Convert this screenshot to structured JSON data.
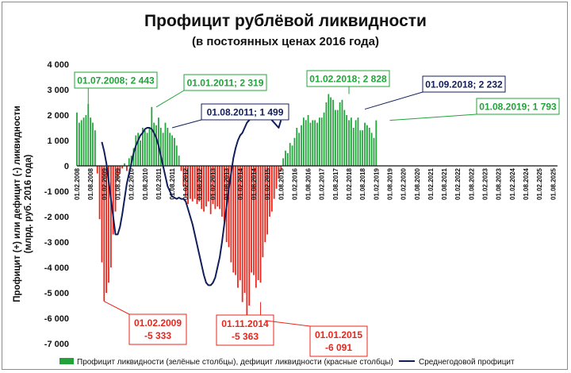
{
  "chart_data": {
    "type": "bar",
    "title": "Профицит рублёвой ликвидности",
    "subtitle": "(в постоянных ценах 2016 года)",
    "ylabel_line1": "Профицит (+) или дефицит (-) ликвидности",
    "ylabel_line2": "(млрд. руб. 2016 года)",
    "ylim": [
      -7000,
      4000
    ],
    "ytick_values": [
      4000,
      3000,
      2000,
      1000,
      0,
      -1000,
      -2000,
      -3000,
      -4000,
      -5000,
      -6000,
      -7000
    ],
    "ytick_labels": [
      "4 000",
      "3 000",
      "2 000",
      "1 000",
      "0",
      "-1 000",
      "-2 000",
      "-3 000",
      "-4 000",
      "-5 000",
      "-6 000",
      "-7 000"
    ],
    "x_start": "2008-02",
    "x_end": "2025-10",
    "xtick_labels": [
      "01.02.2008",
      "01.08.2008",
      "01.02.2009",
      "01.08.2009",
      "01.02.2010",
      "01.08.2010",
      "01.02.2011",
      "01.08.2011",
      "01.02.2012",
      "01.08.2012",
      "01.02.2013",
      "01.08.2013",
      "01.02.2014",
      "01.08.2014",
      "01.02.2015",
      "01.08.2015",
      "01.02.2016",
      "01.08.2016",
      "01.02.2017",
      "01.08.2017",
      "01.02.2018",
      "01.08.2018",
      "01.02.2019",
      "01.08.2019",
      "01.02.2020",
      "01.08.2020",
      "01.02.2021",
      "01.08.2021",
      "01.02.2022",
      "01.08.2022",
      "01.02.2023",
      "01.08.2023",
      "01.02.2024",
      "01.08.2024",
      "01.02.2025",
      "01.08.2025"
    ],
    "bar_start": "2008-02",
    "bars": [
      2100,
      1700,
      1800,
      1900,
      2000,
      2443,
      1900,
      1700,
      1400,
      -300,
      -2100,
      -3800,
      -5333,
      -5000,
      -4600,
      -4000,
      -2700,
      -1800,
      -600,
      -300,
      -100,
      100,
      -200,
      300,
      400,
      700,
      1200,
      1300,
      1000,
      1500,
      1400,
      1300,
      1500,
      2319,
      1700,
      1600,
      1900,
      1500,
      1300,
      1700,
      1500,
      1300,
      1200,
      1100,
      800,
      400,
      -200,
      -800,
      -1200,
      -1500,
      -1300,
      -1400,
      -1300,
      -1500,
      -1400,
      -1700,
      -1800,
      -1600,
      -1400,
      -1900,
      -1500,
      -1700,
      -1600,
      -1700,
      -2000,
      -2200,
      -3000,
      -3200,
      -3800,
      -4200,
      -4300,
      -4800,
      -4500,
      -5363,
      -5000,
      -6091,
      -5500,
      -4200,
      -4300,
      -4800,
      -4500,
      -4600,
      -3600,
      -3000,
      -2700,
      -2000,
      -1800,
      -1300,
      -900,
      -500,
      -200,
      300,
      600,
      500,
      900,
      800,
      1100,
      1500,
      1300,
      1600,
      1900,
      1800,
      2000,
      1700,
      1800,
      1800,
      1700,
      1900,
      1900,
      2100,
      2500,
      2828,
      2700,
      2600,
      2200,
      2200,
      2500,
      2600,
      2200,
      2000,
      1800,
      1900,
      1500,
      1800,
      1900,
      1400,
      1400,
      1700,
      1600,
      1500,
      1300,
      1100,
      1793
    ],
    "avg_start": "2009-01",
    "average": [
      940,
      580,
      100,
      -600,
      -1300,
      -2000,
      -2700,
      -2700,
      -2400,
      -1900,
      -1300,
      -700,
      -300,
      100,
      500,
      800,
      1000,
      1200,
      1300,
      1450,
      1499,
      1499,
      1450,
      1300,
      1100,
      800,
      400,
      0,
      -400,
      -800,
      -1000,
      -1200,
      -1250,
      -1300,
      -1250,
      -1300,
      -1300,
      -1400,
      -1700,
      -2000,
      -2300,
      -2700,
      -3100,
      -3500,
      -3900,
      -4300,
      -4600,
      -4700,
      -4700,
      -4600,
      -4400,
      -4000,
      -3600,
      -3000,
      -2300,
      -1600,
      -900,
      -300,
      300,
      700,
      1000,
      1200,
      1300,
      1500,
      1700,
      1800,
      1900,
      2000,
      2100,
      2150,
      2200,
      2232,
      2200,
      2100,
      1950,
      1800,
      1700,
      1600,
      1500,
      1793
    ],
    "bar_colors": {
      "positive": "#21a33a",
      "negative": "#e8261c",
      "average": "#101e5a"
    },
    "annotations": [
      {
        "text": "01.07.2008; 2 443",
        "color": "#21a33a"
      },
      {
        "text": "01.01.2011; 2 319",
        "color": "#21a33a"
      },
      {
        "text": "01.08.2011; 1 499",
        "color": "#101e5a"
      },
      {
        "text": "01.02.2018; 2 828",
        "color": "#21a33a"
      },
      {
        "text": "01.09.2018; 2 232",
        "color": "#101e5a"
      },
      {
        "text": "01.08.2019; 1 793",
        "color": "#21a33a"
      },
      {
        "text": "01.02.2009\n-5 333",
        "color": "#e8261c"
      },
      {
        "text": "01.11.2014\n-5 363",
        "color": "#e8261c"
      },
      {
        "text": "01.01.2015\n-6 091",
        "color": "#e8261c"
      }
    ],
    "legend": [
      {
        "name": "Профицит ликвидности (зелёные столбцы), дефицит ликвидности (красные столбцы)"
      },
      {
        "name": "Среднегодовой профицит"
      }
    ],
    "legend_position": "bottom"
  }
}
